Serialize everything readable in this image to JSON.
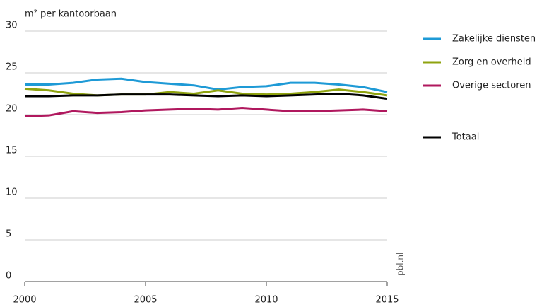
{
  "chart_data": {
    "type": "line",
    "y_label": "m² per kantoorbaan",
    "source": "pbl.nl",
    "x": [
      2000,
      2001,
      2002,
      2003,
      2004,
      2005,
      2006,
      2007,
      2008,
      2009,
      2010,
      2011,
      2012,
      2013,
      2014,
      2015
    ],
    "xlim": [
      2000,
      2015
    ],
    "xticks": [
      2000,
      2005,
      2010,
      2015
    ],
    "ylim": [
      0,
      30
    ],
    "yticks": [
      0,
      5,
      10,
      15,
      20,
      25,
      30
    ],
    "grid": true,
    "series": [
      {
        "name": "Zakelijke diensten",
        "color": "#1e9ad6",
        "values": [
          23.6,
          23.6,
          23.8,
          24.2,
          24.3,
          23.9,
          23.7,
          23.5,
          23.0,
          23.3,
          23.4,
          23.8,
          23.8,
          23.6,
          23.3,
          22.7
        ]
      },
      {
        "name": "Zorg en overheid",
        "color": "#8fa30f",
        "values": [
          23.1,
          22.9,
          22.5,
          22.3,
          22.4,
          22.4,
          22.7,
          22.5,
          22.9,
          22.5,
          22.4,
          22.5,
          22.7,
          23.0,
          22.7,
          22.3
        ]
      },
      {
        "name": "Overige sectoren",
        "color": "#b0185e",
        "values": [
          19.8,
          19.9,
          20.4,
          20.2,
          20.3,
          20.5,
          20.6,
          20.7,
          20.6,
          20.8,
          20.6,
          20.4,
          20.4,
          20.5,
          20.6,
          20.4
        ]
      },
      {
        "name": "Totaal",
        "color": "#000000",
        "values": [
          22.2,
          22.2,
          22.3,
          22.3,
          22.4,
          22.4,
          22.4,
          22.3,
          22.2,
          22.3,
          22.2,
          22.3,
          22.4,
          22.5,
          22.3,
          21.9
        ]
      }
    ]
  }
}
